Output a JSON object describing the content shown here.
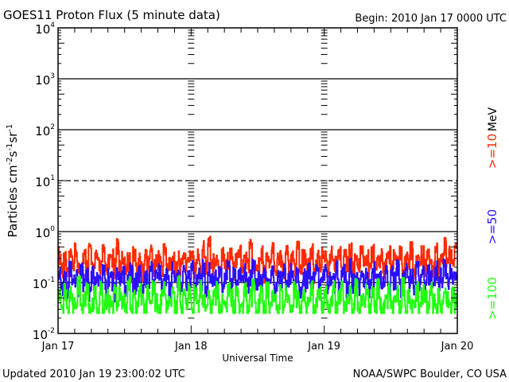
{
  "header": {
    "title": "GOES11 Proton Flux (5 minute data)",
    "begin": "Begin: 2010 Jan 17 0000 UTC"
  },
  "footer": {
    "updated": "Updated 2010 Jan 19 23:00:02 UTC",
    "credit": "NOAA/SWPC Boulder, CO USA"
  },
  "legend": {
    "unit": "MeV",
    "items": [
      {
        "label": ">=10",
        "color": "#ff2a00"
      },
      {
        "label": ">=50",
        "color": "#2a10ff"
      },
      {
        "label": ">=100",
        "color": "#22ff10"
      }
    ]
  },
  "chart_data": {
    "type": "line",
    "title": "GOES11 Proton Flux (5 minute data)",
    "xlabel": "Universal Time",
    "ylabel": "Particles cm-2 s-1 sr-1",
    "yscale": "log",
    "ylim": [
      0.01,
      10000
    ],
    "xlim": [
      0,
      72
    ],
    "x_unit": "hours since 2010 Jan 17 0000 UTC",
    "x_ticks": [
      {
        "value": 0,
        "label": "Jan 17"
      },
      {
        "value": 24,
        "label": "Jan 18"
      },
      {
        "value": 48,
        "label": "Jan 19"
      },
      {
        "value": 72,
        "label": "Jan 20"
      }
    ],
    "y_ticks": [
      {
        "value": 0.01,
        "base": "10",
        "exp": "-2"
      },
      {
        "value": 0.1,
        "base": "10",
        "exp": "-1"
      },
      {
        "value": 1,
        "base": "10",
        "exp": "0"
      },
      {
        "value": 10,
        "base": "10",
        "exp": "1"
      },
      {
        "value": 100,
        "base": "10",
        "exp": "2"
      },
      {
        "value": 1000,
        "base": "10",
        "exp": "3"
      },
      {
        "value": 10000,
        "base": "10",
        "exp": "4"
      }
    ],
    "reference_lines": [
      {
        "value": 1000,
        "style": "solid"
      },
      {
        "value": 100,
        "style": "solid"
      },
      {
        "value": 10,
        "style": "dashed"
      },
      {
        "value": 1,
        "style": "solid"
      },
      {
        "value": 0.1,
        "style": "solid"
      }
    ],
    "series": [
      {
        "name": ">=10 MeV",
        "color": "#ff2a00",
        "x_step": 0.5,
        "values": [
          0.35,
          0.2,
          0.28,
          0.15,
          0.3,
          0.22,
          0.4,
          0.18,
          0.25,
          0.33,
          0.2,
          0.45,
          0.17,
          0.3,
          0.26,
          0.2,
          0.38,
          0.16,
          0.24,
          0.3,
          0.2,
          0.55,
          0.18,
          0.3,
          0.22,
          0.27,
          0.15,
          0.35,
          0.2,
          0.28,
          0.17,
          0.32,
          0.22,
          0.4,
          0.19,
          0.26,
          0.3,
          0.2,
          0.42,
          0.18,
          0.25,
          0.32,
          0.17,
          0.28,
          0.2,
          0.35,
          0.22,
          0.3,
          0.4,
          0.2,
          0.32,
          0.18,
          0.45,
          0.22,
          0.6,
          0.2,
          0.3,
          0.25,
          0.18,
          0.38,
          0.2,
          0.28,
          0.33,
          0.17,
          0.26,
          0.4,
          0.2,
          0.3,
          0.22,
          0.5,
          0.18,
          0.28,
          0.24,
          0.35,
          0.16,
          0.3,
          0.2,
          0.42,
          0.19,
          0.27,
          0.32,
          0.18,
          0.36,
          0.22,
          0.28,
          0.2,
          0.45,
          0.17,
          0.3,
          0.25,
          0.2,
          0.38,
          0.16,
          0.3,
          0.22,
          0.33,
          0.3,
          0.18,
          0.4,
          0.2,
          0.27,
          0.35,
          0.16,
          0.3,
          0.22,
          0.45,
          0.18,
          0.28,
          0.2,
          0.36,
          0.24,
          0.3,
          0.17,
          0.4,
          0.2,
          0.28,
          0.32,
          0.18,
          0.26,
          0.38,
          0.2,
          0.3,
          0.22,
          0.35,
          0.17,
          0.28,
          0.25,
          0.42,
          0.19,
          0.3,
          0.22,
          0.35,
          0.2,
          0.3,
          0.26,
          0.18,
          0.4,
          0.2,
          0.3,
          0.55,
          0.22,
          0.35,
          0.2,
          0.5
        ]
      },
      {
        "name": ">=50 MeV",
        "color": "#2a10ff",
        "x_step": 0.5,
        "values": [
          0.15,
          0.09,
          0.12,
          0.07,
          0.18,
          0.1,
          0.13,
          0.08,
          0.2,
          0.1,
          0.14,
          0.07,
          0.16,
          0.09,
          0.12,
          0.1,
          0.19,
          0.08,
          0.13,
          0.11,
          0.07,
          0.17,
          0.1,
          0.14,
          0.08,
          0.12,
          0.2,
          0.09,
          0.11,
          0.15,
          0.07,
          0.13,
          0.1,
          0.18,
          0.08,
          0.12,
          0.16,
          0.09,
          0.11,
          0.14,
          0.07,
          0.2,
          0.1,
          0.13,
          0.08,
          0.15,
          0.11,
          0.12,
          0.19,
          0.09,
          0.14,
          0.1,
          0.2,
          0.08,
          0.17,
          0.11,
          0.13,
          0.09,
          0.15,
          0.07,
          0.12,
          0.18,
          0.1,
          0.14,
          0.08,
          0.13,
          0.11,
          0.16,
          0.09,
          0.12,
          0.2,
          0.08,
          0.14,
          0.1,
          0.17,
          0.09,
          0.12,
          0.15,
          0.07,
          0.13,
          0.11,
          0.19,
          0.08,
          0.12,
          0.16,
          0.1,
          0.14,
          0.07,
          0.13,
          0.11,
          0.18,
          0.09,
          0.12,
          0.15,
          0.08,
          0.14,
          0.16,
          0.09,
          0.12,
          0.1,
          0.18,
          0.08,
          0.13,
          0.15,
          0.07,
          0.2,
          0.1,
          0.12,
          0.09,
          0.16,
          0.11,
          0.14,
          0.08,
          0.13,
          0.18,
          0.1,
          0.12,
          0.09,
          0.15,
          0.07,
          0.14,
          0.11,
          0.19,
          0.08,
          0.12,
          0.16,
          0.1,
          0.13,
          0.09,
          0.17,
          0.11,
          0.14,
          0.08,
          0.15,
          0.12,
          0.1,
          0.18,
          0.09,
          0.13,
          0.2,
          0.1,
          0.15,
          0.11,
          0.14
        ]
      },
      {
        "name": ">=100 MeV",
        "color": "#22ff10",
        "x_step": 0.5,
        "values": [
          0.05,
          0.03,
          0.07,
          0.03,
          0.06,
          0.04,
          0.03,
          0.09,
          0.03,
          0.05,
          0.07,
          0.03,
          0.04,
          0.06,
          0.03,
          0.08,
          0.03,
          0.05,
          0.04,
          0.03,
          0.07,
          0.03,
          0.06,
          0.04,
          0.03,
          0.09,
          0.03,
          0.05,
          0.03,
          0.07,
          0.04,
          0.03,
          0.06,
          0.03,
          0.08,
          0.04,
          0.03,
          0.05,
          0.07,
          0.03,
          0.04,
          0.06,
          0.03,
          0.09,
          0.03,
          0.05,
          0.04,
          0.07,
          0.03,
          0.06,
          0.03,
          0.08,
          0.04,
          0.03,
          0.06,
          0.03,
          0.05,
          0.07,
          0.03,
          0.04,
          0.03,
          0.08,
          0.05,
          0.03,
          0.06,
          0.04,
          0.03,
          0.07,
          0.03,
          0.05,
          0.09,
          0.03,
          0.04,
          0.06,
          0.03,
          0.07,
          0.03,
          0.05,
          0.04,
          0.03,
          0.08,
          0.03,
          0.06,
          0.04,
          0.03,
          0.07,
          0.05,
          0.03,
          0.06,
          0.03,
          0.04,
          0.08,
          0.03,
          0.05,
          0.07,
          0.03,
          0.06,
          0.03,
          0.04,
          0.08,
          0.03,
          0.05,
          0.07,
          0.03,
          0.04,
          0.06,
          0.03,
          0.09,
          0.03,
          0.05,
          0.04,
          0.07,
          0.03,
          0.06,
          0.03,
          0.08,
          0.04,
          0.03,
          0.05,
          0.07,
          0.03,
          0.04,
          0.06,
          0.03,
          0.09,
          0.03,
          0.05,
          0.04,
          0.03,
          0.07,
          0.03,
          0.06,
          0.05,
          0.03,
          0.08,
          0.04,
          0.03,
          0.06,
          0.03,
          0.07,
          0.05,
          0.03,
          0.06,
          0.04
        ]
      }
    ]
  }
}
